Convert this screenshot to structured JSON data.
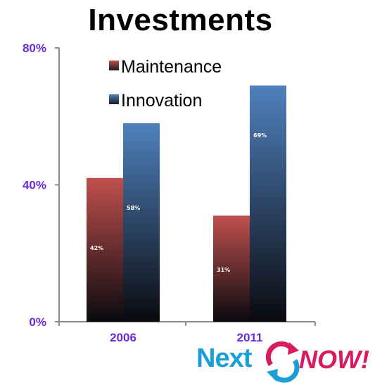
{
  "chart_data": {
    "type": "bar",
    "title": "Investments",
    "categories": [
      "2006",
      "2011"
    ],
    "series": [
      {
        "name": "Maintenance",
        "values": [
          42,
          31
        ],
        "labels": [
          "42%",
          "31%"
        ],
        "color": "#c0504d"
      },
      {
        "name": "Innovation",
        "values": [
          58,
          69
        ],
        "labels": [
          "58%",
          "69%"
        ],
        "color": "#4f81bd"
      }
    ],
    "yticks": [
      "0%",
      "40%",
      "80%"
    ],
    "ylim": [
      0,
      80
    ],
    "legend": "top-center",
    "grid": false
  },
  "logo": {
    "word1": "Next",
    "word2": "NOW!"
  }
}
